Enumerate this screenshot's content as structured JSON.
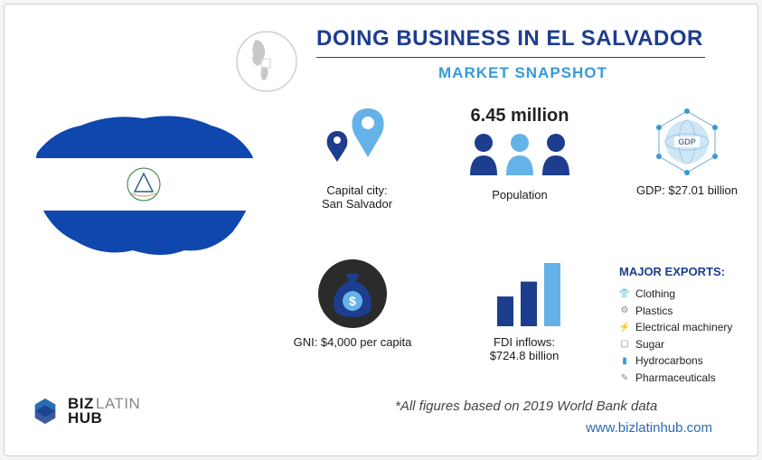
{
  "title": "DOING BUSINESS IN EL SALVADOR",
  "subtitle": "MARKET SNAPSHOT",
  "colors": {
    "primary_blue": "#1d3d8e",
    "accent_blue": "#369bd7",
    "dark_text": "#1a1a1a",
    "light_blue": "#65b2e8",
    "flag_blue": "#0f47af",
    "globe_gray": "#d0d0d0",
    "bg": "#ffffff"
  },
  "globe": {
    "outline_color": "#d0d0d0",
    "continent_color": "#bfbfbf"
  },
  "country_map": {
    "flag_colors": {
      "top": "#0f47af",
      "middle": "#ffffff",
      "bottom": "#0f47af"
    },
    "emblem_color": "#2a5c8d"
  },
  "stats": {
    "capital": {
      "label1": "Capital city:",
      "label2": "San Salvador",
      "icon_colors": [
        "#1d3d8e",
        "#65b2e8"
      ]
    },
    "population": {
      "value": "6.45 million",
      "label": "Population",
      "icon_colors": [
        "#1d3d8e",
        "#65b2e8",
        "#1d3d8e"
      ]
    },
    "gdp": {
      "label": "GDP: $27.01 billion",
      "badge": "GDP",
      "icon_color": "#369bd7"
    },
    "gni": {
      "label": "GNI: $4,000 per capita",
      "bag_color": "#1d3d8e",
      "coin_color": "#65b2e8",
      "bg_circle": "#2b2b2b"
    },
    "fdi": {
      "label1": "FDI inflows:",
      "label2": "$724.8 billion",
      "bar_values": [
        40,
        60,
        85
      ],
      "bar_colors": [
        "#1d3d8e",
        "#1d3d8e",
        "#65b2e8"
      ]
    }
  },
  "exports": {
    "title": "MAJOR EXPORTS:",
    "items": [
      {
        "icon": "clothing-icon",
        "glyph": "👕",
        "label": "Clothing",
        "color": "#1d3d8e"
      },
      {
        "icon": "plastics-icon",
        "glyph": "⚙",
        "label": "Plastics",
        "color": "#888"
      },
      {
        "icon": "electrical-icon",
        "glyph": "⚡",
        "label": "Electrical machinery",
        "color": "#222"
      },
      {
        "icon": "sugar-icon",
        "glyph": "▢",
        "label": "Sugar",
        "color": "#888"
      },
      {
        "icon": "hydrocarbons-icon",
        "glyph": "▮",
        "label": "Hydrocarbons",
        "color": "#369bd7"
      },
      {
        "icon": "pharma-icon",
        "glyph": "✎",
        "label": "Pharmaceuticals",
        "color": "#888"
      }
    ]
  },
  "logo": {
    "line1a": "BIZ",
    "line1b": "LATIN",
    "line2": "HUB",
    "mark_color": "#2a6bb5"
  },
  "footnote": "*All figures based on 2019 World Bank data",
  "url": "www.bizlatinhub.com"
}
